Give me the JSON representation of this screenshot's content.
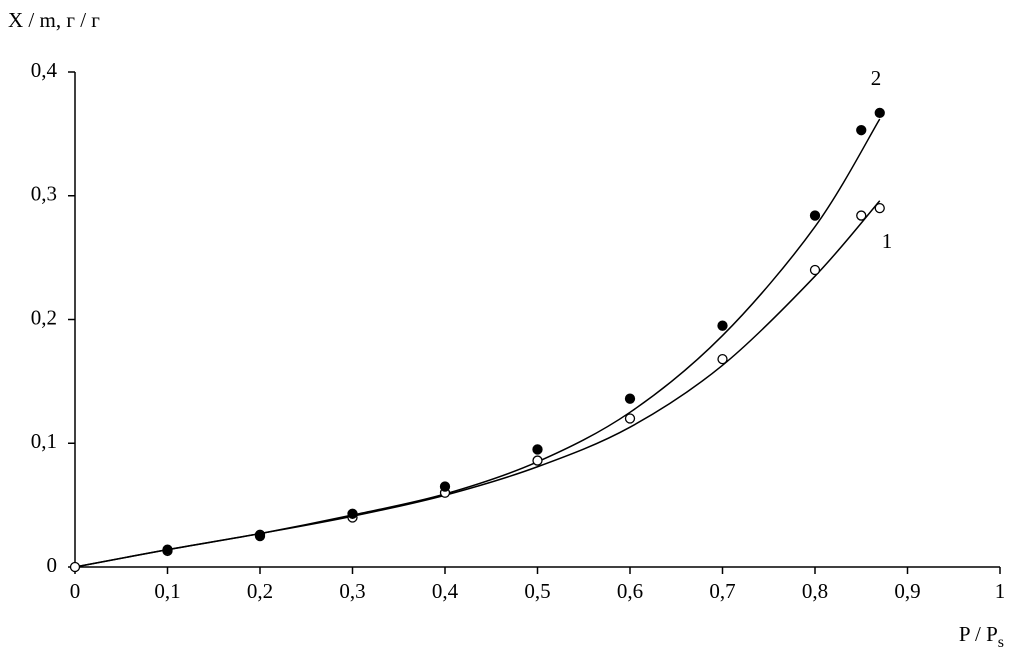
{
  "chart_data": {
    "type": "scatter",
    "ylabel": "X / m, г / г",
    "xlabel": "P / P",
    "xlabel_sub": "s",
    "xlim": [
      0,
      1
    ],
    "xticks": [
      0,
      {
        "value": 0.1,
        "label": "0,1"
      },
      {
        "value": 0.2,
        "label": "0,2"
      },
      {
        "value": 0.3,
        "label": "0,3"
      },
      {
        "value": 0.4,
        "label": "0,4"
      },
      {
        "value": 0.5,
        "label": "0,5"
      },
      {
        "value": 0.6,
        "label": "0,6"
      },
      {
        "value": 0.7,
        "label": "0,7"
      },
      {
        "value": 0.8,
        "label": "0,8"
      },
      {
        "value": 0.9,
        "label": "0,9"
      },
      1
    ],
    "ylim": [
      0,
      0.4
    ],
    "yticks": [
      0,
      {
        "value": 0.1,
        "label": "0,1"
      },
      {
        "value": 0.2,
        "label": "0,2"
      },
      {
        "value": 0.3,
        "label": "0,3"
      },
      {
        "value": 0.4,
        "label": "0,4"
      }
    ],
    "grid": false,
    "series": [
      {
        "marker": "open",
        "color": "#000000",
        "x": [
          0,
          0.1,
          0.2,
          0.3,
          0.4,
          0.5,
          0.6,
          0.7,
          0.8,
          0.85,
          0.87
        ],
        "values": [
          0,
          0.013,
          0.026,
          0.04,
          0.06,
          0.086,
          0.12,
          0.168,
          0.24,
          0.284,
          0.29
        ]
      },
      {
        "marker": "filled",
        "color": "#000000",
        "x": [
          0.1,
          0.2,
          0.3,
          0.4,
          0.5,
          0.6,
          0.7,
          0.8,
          0.85,
          0.87
        ],
        "values": [
          0.014,
          0.025,
          0.043,
          0.065,
          0.095,
          0.136,
          0.195,
          0.284,
          0.353,
          0.367
        ]
      }
    ],
    "fits": [
      {
        "color": "#000000",
        "x": [
          0,
          0.1,
          0.2,
          0.3,
          0.4,
          0.5,
          0.6,
          0.7,
          0.8,
          0.87
        ],
        "values": [
          0,
          0.014,
          0.027,
          0.041,
          0.058,
          0.081,
          0.113,
          0.163,
          0.235,
          0.296
        ]
      },
      {
        "color": "#000000",
        "x": [
          0,
          0.1,
          0.2,
          0.3,
          0.4,
          0.5,
          0.6,
          0.7,
          0.8,
          0.87
        ],
        "values": [
          0,
          0.014,
          0.027,
          0.042,
          0.059,
          0.085,
          0.125,
          0.187,
          0.275,
          0.362
        ]
      }
    ],
    "annotations": [
      "1",
      "2"
    ]
  }
}
